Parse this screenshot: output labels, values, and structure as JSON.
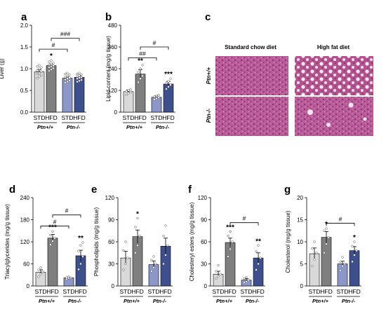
{
  "panel_c": {
    "label": "c",
    "col_headers": [
      "Standard chow diet",
      "High fat diet"
    ],
    "row_labels": [
      "Ptn+/+",
      "Ptn-/-"
    ]
  },
  "colors": {
    "STD_wt": "#d9d9d9",
    "HFD_wt": "#7f7f7f",
    "STD_ko": "#8b97c8",
    "HFD_ko": "#3e4f8e",
    "stain_light": "#d69ac1",
    "stain_dark": "#a03f7e"
  },
  "chart_data": [
    {
      "type": "bar",
      "label": "a",
      "ylabel": "Liver (g)",
      "categories": [
        "STD",
        "HFD",
        "STD",
        "HFD"
      ],
      "genotypes": [
        "Ptn+/+",
        "Ptn-/-"
      ],
      "values": [
        0.93,
        1.07,
        0.78,
        0.8
      ],
      "errors": [
        0.05,
        0.04,
        0.03,
        0.03
      ],
      "ylim": [
        0,
        2.0
      ],
      "yticks": [
        "0.0",
        "0.5",
        "1.0",
        "1.5",
        "2.0"
      ],
      "stars": [
        "",
        "*",
        "",
        ""
      ],
      "brackets": [
        {
          "text": "#",
          "from": 0,
          "to": 2,
          "y": 1.45
        },
        {
          "text": "###",
          "from": 1,
          "to": 3,
          "y": 1.7
        }
      ],
      "points": [
        [
          0.78,
          0.82,
          0.85,
          0.88,
          0.9,
          0.93,
          0.96,
          1.0,
          1.03,
          1.05,
          1.08
        ],
        [
          0.95,
          0.98,
          1.01,
          1.03,
          1.05,
          1.07,
          1.09,
          1.11,
          1.13,
          1.16,
          1.19
        ],
        [
          0.68,
          0.7,
          0.73,
          0.75,
          0.77,
          0.79,
          0.81,
          0.83,
          0.86,
          0.88,
          0.9
        ],
        [
          0.7,
          0.72,
          0.74,
          0.77,
          0.79,
          0.8,
          0.82,
          0.84,
          0.86,
          0.88,
          0.9
        ]
      ]
    },
    {
      "type": "bar",
      "label": "b",
      "ylabel": "Lipid content (mg/g tissue)",
      "categories": [
        "STD",
        "HFD",
        "STD",
        "HFD"
      ],
      "genotypes": [
        "Ptn+/+",
        "Ptn-/-"
      ],
      "values": [
        113,
        210,
        82,
        155
      ],
      "errors": [
        10,
        25,
        8,
        15
      ],
      "ylim": [
        0,
        480
      ],
      "yticks": [
        "0",
        "120",
        "240",
        "360",
        "480"
      ],
      "stars": [
        "",
        "**",
        "",
        "***"
      ],
      "brackets": [
        {
          "text": "##",
          "from": 0,
          "to": 2,
          "y": 300
        },
        {
          "text": "#",
          "from": 1,
          "to": 3,
          "y": 360
        }
      ],
      "points": [
        [
          95,
          105,
          110,
          115,
          120,
          125
        ],
        [
          165,
          185,
          200,
          220,
          240,
          260
        ],
        [
          70,
          76,
          82,
          86,
          90,
          94
        ],
        [
          128,
          140,
          150,
          160,
          170,
          185
        ]
      ]
    },
    {
      "type": "bar",
      "label": "d",
      "ylabel": "Triacylglycerides (mg/g tissue)",
      "categories": [
        "STD",
        "HFD",
        "STD",
        "HFD"
      ],
      "genotypes": [
        "Ptn+/+",
        "Ptn-/-"
      ],
      "values": [
        37,
        130,
        22,
        82
      ],
      "errors": [
        7,
        10,
        2,
        15
      ],
      "ylim": [
        0,
        240
      ],
      "yticks": [
        "0",
        "60",
        "120",
        "180",
        "240"
      ],
      "stars": [
        "",
        "***",
        "",
        "**"
      ],
      "brackets": [
        {
          "text": "#",
          "from": 0,
          "to": 2,
          "y": 163
        },
        {
          "text": "#",
          "from": 1,
          "to": 3,
          "y": 193
        }
      ],
      "points": [
        [
          25,
          32,
          38,
          44,
          50
        ],
        [
          112,
          122,
          130,
          138,
          148
        ],
        [
          19,
          21,
          22,
          23,
          25
        ],
        [
          45,
          60,
          80,
          95,
          110,
          118
        ]
      ]
    },
    {
      "type": "bar",
      "label": "e",
      "ylabel": "Phospholipids (mg/g tissue)",
      "categories": [
        "STD",
        "HFD",
        "STD",
        "HFD"
      ],
      "genotypes": [
        "Ptn+/+",
        "Ptn-/-"
      ],
      "values": [
        38,
        67,
        29,
        54
      ],
      "errors": [
        9,
        9,
        5,
        11
      ],
      "ylim": [
        0,
        120
      ],
      "yticks": [
        "0",
        "30",
        "60",
        "90",
        "120"
      ],
      "stars": [
        "",
        "*",
        "",
        ""
      ],
      "brackets": [],
      "points": [
        [
          22,
          30,
          38,
          48,
          60
        ],
        [
          45,
          55,
          68,
          80,
          92
        ],
        [
          20,
          25,
          30,
          35,
          40
        ],
        [
          30,
          42,
          55,
          68,
          82
        ]
      ]
    },
    {
      "type": "bar",
      "label": "f",
      "ylabel": "Cholesteryl esters (mg/g tissue)",
      "categories": [
        "STD",
        "HFD",
        "STD",
        "HFD"
      ],
      "genotypes": [
        "Ptn+/+",
        "Ptn-/-"
      ],
      "values": [
        16,
        59,
        8,
        38
      ],
      "errors": [
        4,
        6,
        2,
        7
      ],
      "ylim": [
        0,
        120
      ],
      "yticks": [
        "0",
        "30",
        "60",
        "90",
        "120"
      ],
      "stars": [
        "",
        "***",
        "",
        "**"
      ],
      "brackets": [
        {
          "text": "#",
          "from": 1,
          "to": 3,
          "y": 86
        }
      ],
      "points": [
        [
          10,
          13,
          16,
          20,
          28
        ],
        [
          40,
          50,
          60,
          68,
          74
        ],
        [
          5,
          6,
          8,
          10,
          12
        ],
        [
          22,
          30,
          38,
          47,
          55
        ]
      ]
    },
    {
      "type": "bar",
      "label": "g",
      "ylabel": "Cholesterol (mg/g tissue)",
      "categories": [
        "STD",
        "HFD",
        "STD",
        "HFD"
      ],
      "genotypes": [
        "Ptn+/+",
        "Ptn-/-"
      ],
      "values": [
        7.3,
        11.0,
        5.0,
        8.0
      ],
      "errors": [
        1.3,
        1.3,
        0.6,
        0.9
      ],
      "ylim": [
        0,
        20
      ],
      "yticks": [
        "0",
        "5",
        "10",
        "15",
        "20"
      ],
      "stars": [
        "",
        "*",
        "",
        "*"
      ],
      "brackets": [
        {
          "text": "#",
          "from": 1,
          "to": 3,
          "y": 14.2
        }
      ],
      "points": [
        [
          4.5,
          6,
          7.5,
          8.5,
          10
        ],
        [
          7.5,
          9.5,
          11,
          12.5,
          13
        ],
        [
          3.5,
          4.5,
          5,
          5.5,
          6.5
        ],
        [
          5.5,
          7,
          8,
          9,
          10
        ]
      ]
    }
  ]
}
